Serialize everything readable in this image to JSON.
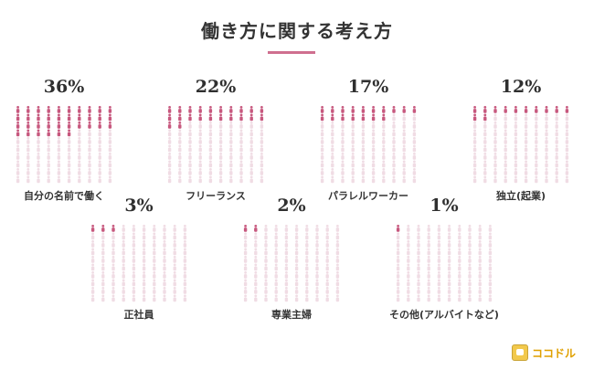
{
  "logo": {
    "text": "ココドル"
  },
  "colors": {
    "filled": "#c7587e",
    "empty": "#f0dce4",
    "accent": "#cf6f8f"
  },
  "chart_data": {
    "type": "pictograph",
    "title": "働き方に関する考え方",
    "units_per_figure": 1,
    "total_figures": 100,
    "items": [
      {
        "label": "自分の名前で働く",
        "value": 36,
        "percent_label": "36%"
      },
      {
        "label": "フリーランス",
        "value": 22,
        "percent_label": "22%"
      },
      {
        "label": "パラレルワーカー",
        "value": 17,
        "percent_label": "17%"
      },
      {
        "label": "独立(起業)",
        "value": 12,
        "percent_label": "12%"
      },
      {
        "label": "正社員",
        "value": 3,
        "percent_label": "3%"
      },
      {
        "label": "専業主婦",
        "value": 2,
        "percent_label": "2%"
      },
      {
        "label": "その他(アルバイトなど)",
        "value": 1,
        "percent_label": "1%"
      }
    ]
  }
}
